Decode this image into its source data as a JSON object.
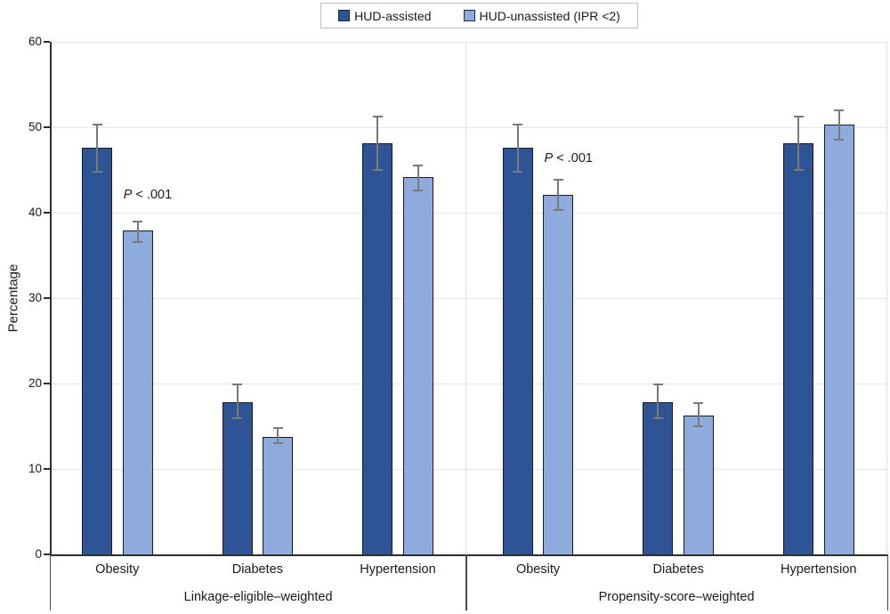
{
  "chart_data": {
    "type": "bar",
    "title": "",
    "xlabel": "",
    "ylabel": "Percentage",
    "ylim": [
      0,
      60
    ],
    "y_ticks": [
      0,
      10,
      20,
      30,
      40,
      50,
      60
    ],
    "grid": true,
    "legend_position": "top-center",
    "error_bars": true,
    "error_bar_color": "#7a7a7a",
    "series_meta": [
      {
        "name": "HUD-assisted",
        "color": "#2F5496"
      },
      {
        "name": "HUD-unassisted (IPR <2)",
        "color": "#8FAADC"
      }
    ],
    "panels": [
      {
        "label": "Linkage-eligible–weighted",
        "categories": [
          "Obesity",
          "Diabetes",
          "Hypertension"
        ],
        "series": [
          {
            "name": "HUD-assisted",
            "values": [
              47.6,
              17.8,
              48.1
            ],
            "ci_low": [
              44.8,
              15.9,
              45.0
            ],
            "ci_high": [
              50.3,
              19.9,
              51.2
            ]
          },
          {
            "name": "HUD-unassisted (IPR <2)",
            "values": [
              37.9,
              13.8,
              44.2
            ],
            "ci_low": [
              36.6,
              13.0,
              42.6
            ],
            "ci_high": [
              39.0,
              14.8,
              45.5
            ]
          }
        ],
        "annotation": {
          "italic": "P",
          "rest": " < .001",
          "near_category": "Obesity"
        }
      },
      {
        "label": "Propensity-score–weighted",
        "categories": [
          "Obesity",
          "Diabetes",
          "Hypertension"
        ],
        "series": [
          {
            "name": "HUD-assisted",
            "values": [
              47.6,
              17.8,
              48.1
            ],
            "ci_low": [
              44.8,
              15.9,
              45.0
            ],
            "ci_high": [
              50.3,
              19.9,
              51.2
            ]
          },
          {
            "name": "HUD-unassisted (IPR <2)",
            "values": [
              42.1,
              16.2,
              50.3
            ],
            "ci_low": [
              40.3,
              15.0,
              48.5
            ],
            "ci_high": [
              43.9,
              17.7,
              52.0
            ]
          }
        ],
        "annotation": {
          "italic": "P",
          "rest": " < .001",
          "near_category": "Obesity"
        }
      }
    ]
  }
}
